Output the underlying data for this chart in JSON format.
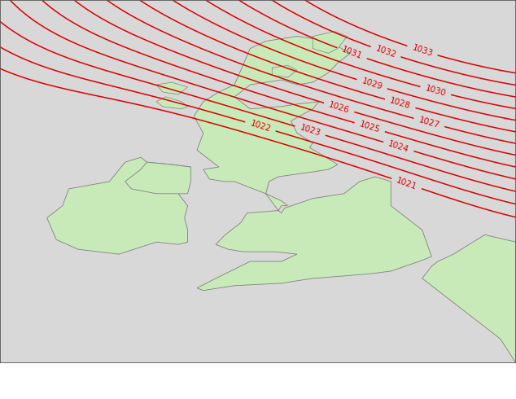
{
  "bg_color": "#d0d0d0",
  "land_color": "#c8eab8",
  "sea_color": "#d8d8d8",
  "contour_color": "#dd0000",
  "contour_linewidth": 1.1,
  "label_fontsize": 7.5,
  "title_fontsize": 9,
  "lon_min": -12.0,
  "lon_max": 4.5,
  "lat_min": 47.0,
  "lat_max": 62.0
}
